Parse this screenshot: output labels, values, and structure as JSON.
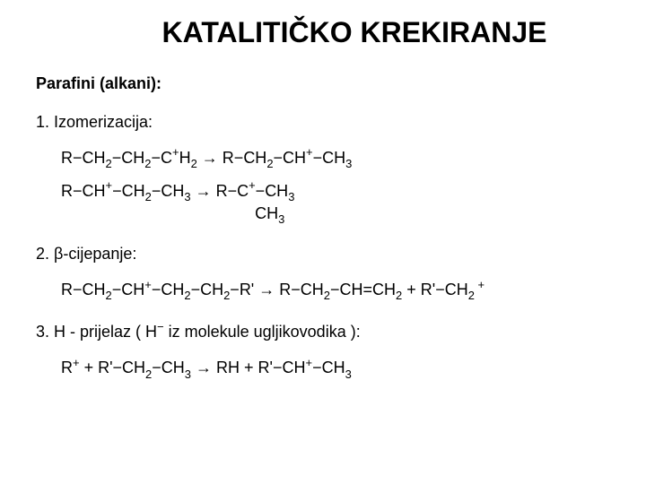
{
  "title": "KATALITIČKO KREKIRANJE",
  "heading": "Parafini (alkani):",
  "item1_label": "1.  Izomerizacija:",
  "r1a": {
    "p1": "R",
    "p2": "CH",
    "s2": "2",
    "p3": "CH",
    "s3": "2",
    "p4": "C",
    "sp4": "+",
    "p4b": "H",
    "s4b": "2",
    "arrow": " → ",
    "p5": "R",
    "p6": "CH",
    "s6": "2",
    "p7": "CH",
    "sp7": "+",
    "p8": "CH",
    "s8": "3"
  },
  "r1b": {
    "p1": "R",
    "p2": "CH",
    "sp2": "+",
    "p3": "CH",
    "s3": "2",
    "p4": "CH",
    "s4": "3",
    "arrow": " → ",
    "p5": "R",
    "p6": "C",
    "sp6": "+",
    "p7": "CH",
    "s7": "3",
    "branch": "CH",
    "branch_s": "3"
  },
  "item2_label": "2.  β-cijepanje:",
  "r2": {
    "p1": "R",
    "p2": "CH",
    "s2": "2",
    "p3": "CH",
    "sp3": "+",
    "p4": "CH",
    "s4": "2",
    "p5": "CH",
    "s5": "2",
    "p6": "R'",
    "arrow": " → ",
    "p7": "R",
    "p8": "CH",
    "s8": "2",
    "p9": "CH",
    "eq": "=",
    "p10": "CH",
    "s10": "2",
    "plus": " + ",
    "p11": "R'",
    "p12": "CH",
    "s12": "2",
    "sp12": " +"
  },
  "item3_label_a": "3.  H - prijelaz ( H",
  "item3_sup": "−",
  "item3_label_b": " iz molekule ugljikovodika ):",
  "r3": {
    "p1": "R",
    "sp1": "+",
    "plus1": " + ",
    "p2": "R'",
    "p3": "CH",
    "s3": "2",
    "p4": "CH",
    "s4": "3",
    "arrow": " → ",
    "p5": "RH",
    "plus2": " + ",
    "p6": "R'",
    "p7": "CH",
    "sp7": "+",
    "p8": "CH",
    "s8": "3"
  },
  "dash": "−"
}
